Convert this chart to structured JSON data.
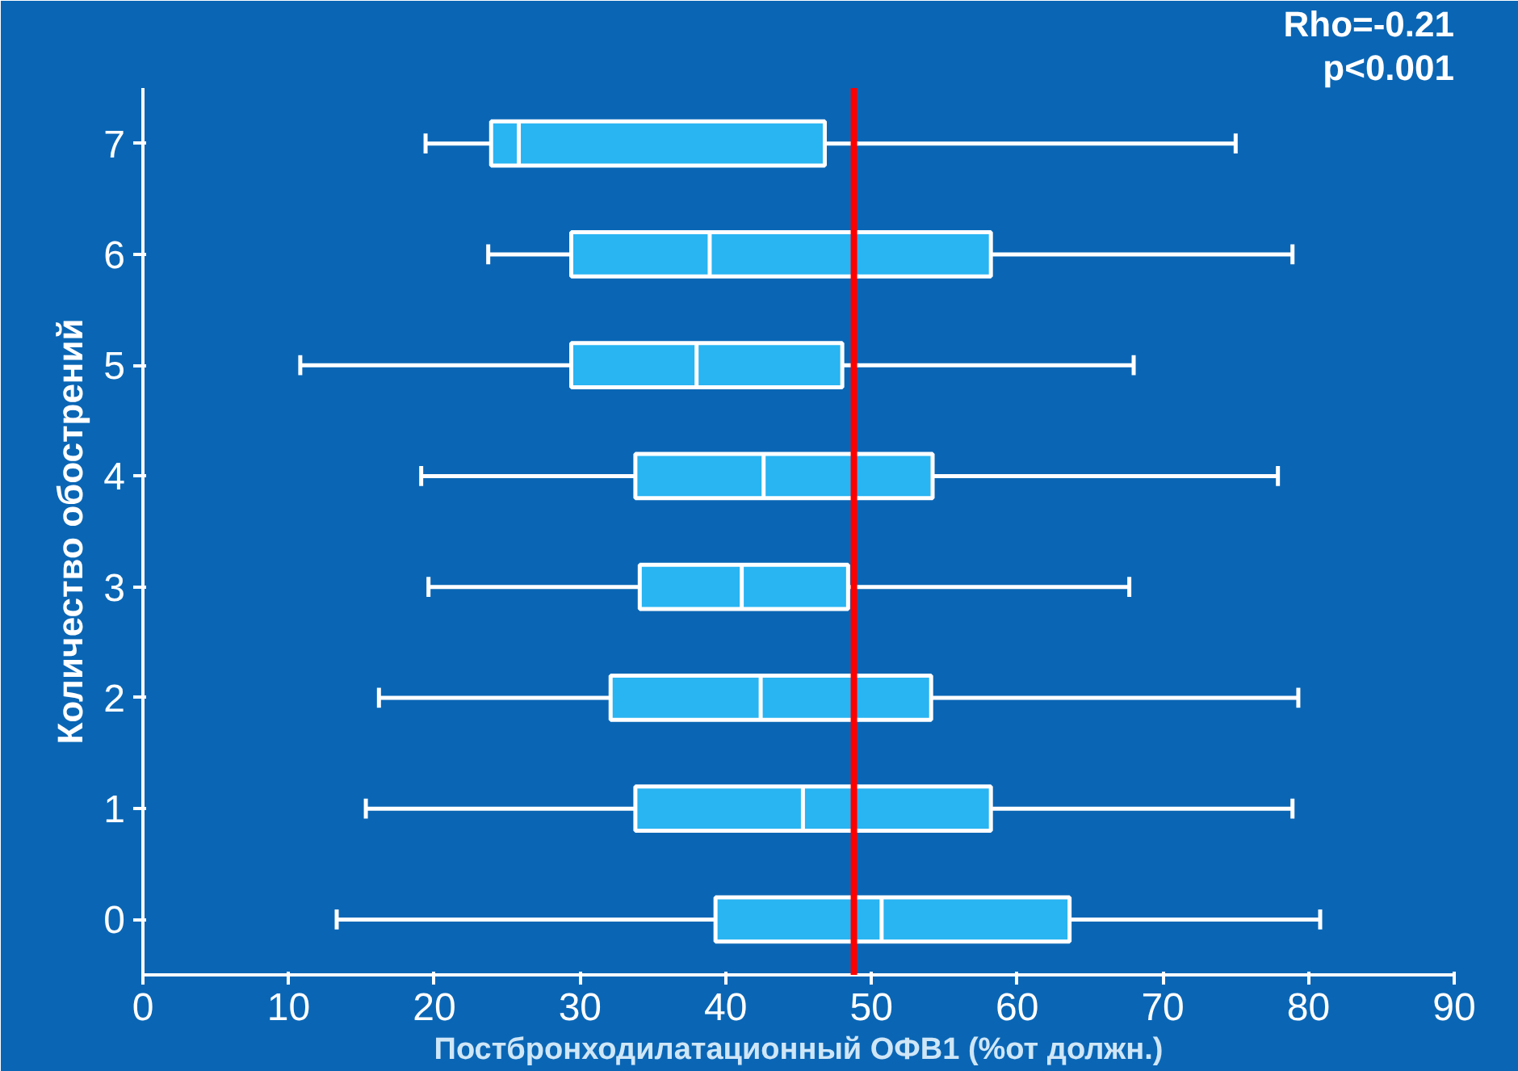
{
  "chart_data": {
    "type": "box",
    "orientation": "horizontal",
    "xlabel": "Постбронходилатационный ОФВ1 (%от должн.)",
    "ylabel": "Количество обострений",
    "categories": [
      "7",
      "6",
      "5",
      "4",
      "3",
      "2",
      "1",
      "0"
    ],
    "series": [
      {
        "color": "#29b4f2",
        "boxes": [
          {
            "low": 19.4,
            "q1": 23.9,
            "median": 25.8,
            "q3": 46.8,
            "high": 75.0
          },
          {
            "low": 23.7,
            "q1": 29.4,
            "median": 38.9,
            "q3": 58.2,
            "high": 78.9
          },
          {
            "low": 10.8,
            "q1": 29.4,
            "median": 38.0,
            "q3": 48.0,
            "high": 68.0
          },
          {
            "low": 19.1,
            "q1": 33.8,
            "median": 42.6,
            "q3": 54.2,
            "high": 77.9
          },
          {
            "low": 19.6,
            "q1": 34.1,
            "median": 41.1,
            "q3": 48.4,
            "high": 67.7
          },
          {
            "low": 16.2,
            "q1": 32.1,
            "median": 42.4,
            "q3": 54.1,
            "high": 79.3
          },
          {
            "low": 15.3,
            "q1": 33.8,
            "median": 45.3,
            "q3": 58.2,
            "high": 78.9
          },
          {
            "low": 13.3,
            "q1": 39.3,
            "median": 50.7,
            "q3": 63.6,
            "high": 80.8
          }
        ]
      }
    ],
    "xlim": [
      0,
      90
    ],
    "xticks": [
      0,
      10,
      20,
      30,
      40,
      50,
      60,
      70,
      80,
      90
    ],
    "ref_lines": [
      {
        "axis": "x",
        "value": 48.8,
        "color": "#ff0000"
      }
    ],
    "annotations": [
      "Rho=-0.21",
      "p<0.001"
    ],
    "grid": false
  }
}
